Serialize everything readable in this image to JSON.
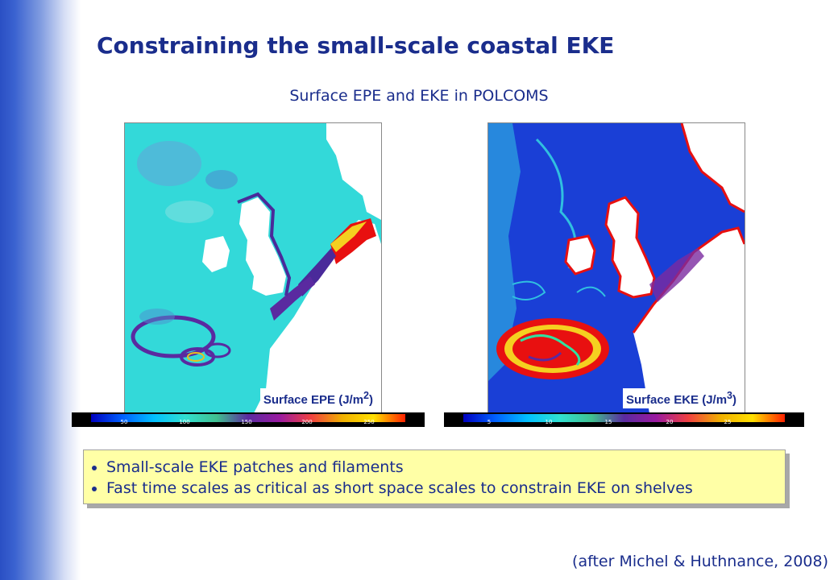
{
  "slide": {
    "title": "Constraining the small-scale coastal EKE",
    "subtitle": "Surface EPE and EKE in POLCOMS",
    "citation": "(after Michel & Huthnance, 2008)"
  },
  "maps": [
    {
      "label_text": "Surface EPE (J/m",
      "label_sup": "2",
      "label_close": ")",
      "colorbar_ticks": [
        "50",
        "100",
        "150",
        "200",
        "250"
      ]
    },
    {
      "label_text": "Surface EKE (J/m",
      "label_sup": "3",
      "label_close": ")",
      "colorbar_ticks": [
        "5",
        "10",
        "15",
        "20",
        "25"
      ]
    }
  ],
  "bullets": [
    "Small-scale EKE patches and filaments",
    "Fast time scales as critical as short space scales to constrain EKE on shelves"
  ],
  "colors": {
    "title": "#1a2d8c",
    "text": "#1a2d8c",
    "bullet_box": "#ffffa6",
    "epe_background": "#33d9d9",
    "eke_background": "#1a3fd6"
  }
}
